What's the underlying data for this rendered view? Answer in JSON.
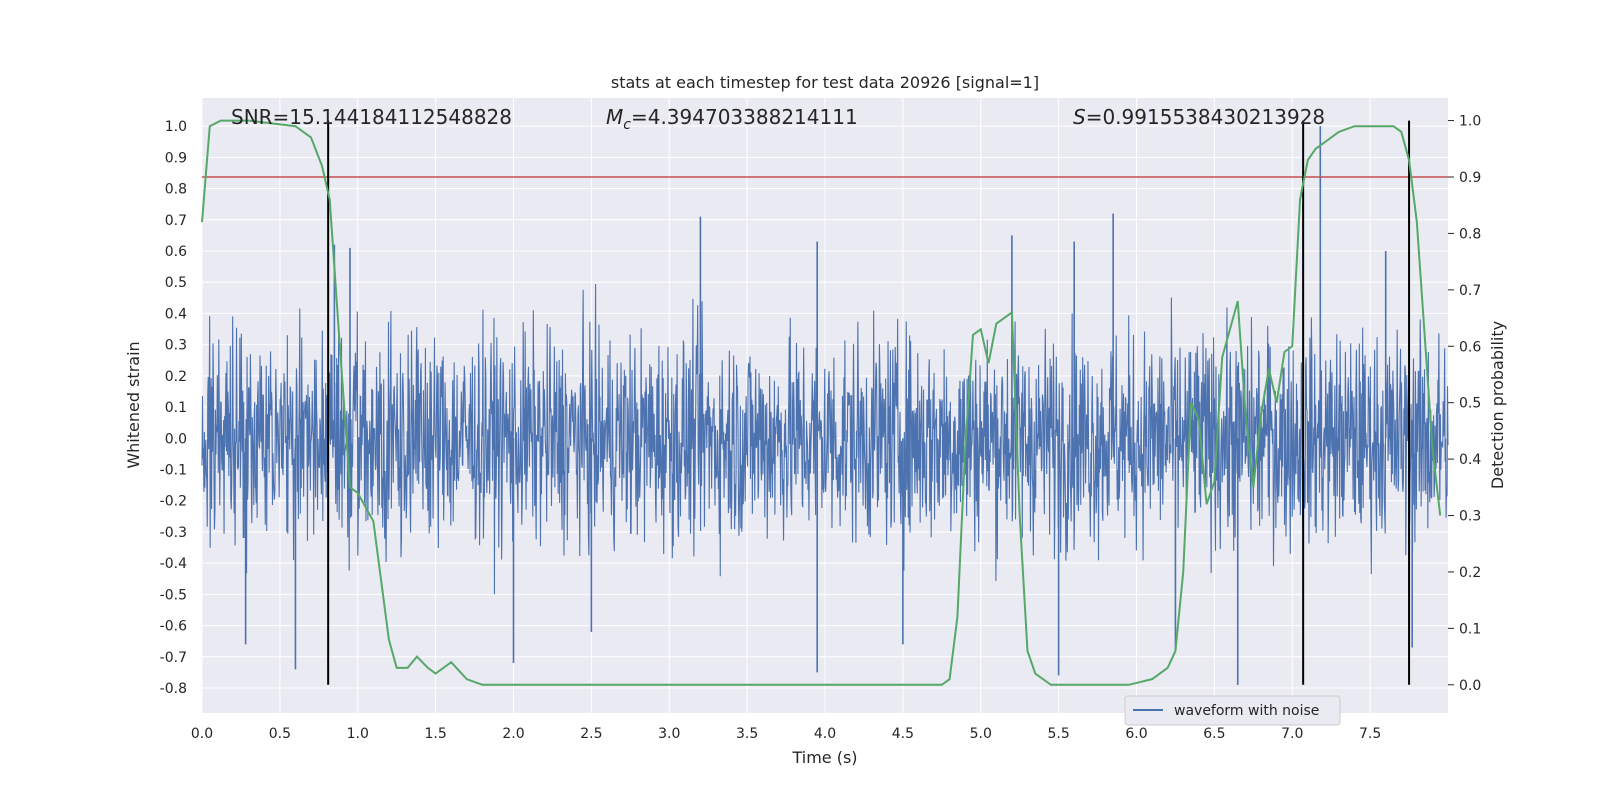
{
  "chart_data": {
    "type": "line",
    "title": "stats at each timestep for test data 20926 [signal=1]",
    "xlabel": "Time (s)",
    "ylabel": "Whitened strain",
    "ylabel_right": "Detection probability",
    "xlim": [
      0,
      8
    ],
    "ylim": [
      -0.88,
      1.09
    ],
    "ylim_right": [
      -0.05,
      1.04
    ],
    "x_ticks": [
      "0.0",
      "0.5",
      "1.0",
      "1.5",
      "2.0",
      "2.5",
      "3.0",
      "3.5",
      "4.0",
      "4.5",
      "5.0",
      "5.5",
      "6.0",
      "6.5",
      "7.0",
      "7.5"
    ],
    "y_ticks": [
      "1.0",
      "0.9",
      "0.8",
      "0.7",
      "0.6",
      "0.5",
      "0.4",
      "0.3",
      "0.2",
      "0.1",
      "0.0",
      "-0.1",
      "-0.2",
      "-0.3",
      "-0.4",
      "-0.5",
      "-0.6",
      "-0.7",
      "-0.8"
    ],
    "y_ticks_right": [
      "1.0",
      "0.9",
      "0.8",
      "0.7",
      "0.6",
      "0.5",
      "0.4",
      "0.3",
      "0.2",
      "0.1",
      "0.0"
    ],
    "annotations": {
      "snr": "SNR=15.144184112548828",
      "mc_symbol": "M",
      "mc_sub": "c",
      "mc_value": "=4.394703388214111",
      "s_symbol": "S",
      "s_value": "=0.9915538430213928"
    },
    "legend": {
      "label": "waveform with noise",
      "placement": "lower-right"
    },
    "grid": true,
    "threshold": {
      "axis": "right",
      "value": 0.9,
      "color": "#c44e52"
    },
    "vertical_lines": [
      0.81,
      7.07,
      7.75
    ],
    "series": [
      {
        "name": "waveform with noise",
        "axis": "left",
        "color": "#4c72b0",
        "kind": "noise",
        "envelope_core": 0.3,
        "peaks": [
          [
            0.85,
            0.62
          ],
          [
            0.6,
            -0.74
          ],
          [
            0.28,
            -0.66
          ],
          [
            0.95,
            0.61
          ],
          [
            2.0,
            -0.72
          ],
          [
            2.5,
            -0.62
          ],
          [
            3.2,
            0.71
          ],
          [
            3.95,
            0.63
          ],
          [
            3.95,
            -0.75
          ],
          [
            4.5,
            -0.66
          ],
          [
            5.2,
            0.65
          ],
          [
            5.5,
            -0.76
          ],
          [
            5.6,
            0.63
          ],
          [
            5.85,
            0.72
          ],
          [
            6.25,
            -0.68
          ],
          [
            6.65,
            -0.79
          ],
          [
            7.07,
            0.75
          ],
          [
            7.18,
            1.0
          ],
          [
            7.77,
            -0.67
          ],
          [
            7.6,
            0.6
          ]
        ]
      },
      {
        "name": "",
        "axis": "right",
        "color": "#55a868",
        "x": [
          0.0,
          0.05,
          0.12,
          0.3,
          0.6,
          0.7,
          0.77,
          0.82,
          0.88,
          0.95,
          1.0,
          1.1,
          1.2,
          1.25,
          1.32,
          1.38,
          1.45,
          1.5,
          1.6,
          1.7,
          1.8,
          2.0,
          2.3,
          2.6,
          3.0,
          3.2,
          3.5,
          3.7,
          3.8,
          3.9,
          4.0,
          4.2,
          4.5,
          4.75,
          4.8,
          4.85,
          4.9,
          4.95,
          5.0,
          5.05,
          5.1,
          5.15,
          5.2,
          5.25,
          5.3,
          5.35,
          5.45,
          5.6,
          5.8,
          5.95,
          6.1,
          6.2,
          6.25,
          6.3,
          6.35,
          6.4,
          6.45,
          6.5,
          6.55,
          6.6,
          6.65,
          6.7,
          6.75,
          6.8,
          6.85,
          6.9,
          6.95,
          7.0,
          7.05,
          7.1,
          7.15,
          7.2,
          7.3,
          7.4,
          7.45,
          7.5,
          7.55,
          7.6,
          7.65,
          7.7,
          7.75,
          7.8,
          7.85,
          7.9,
          7.95
        ],
        "y": [
          0.82,
          0.99,
          1.0,
          1.0,
          0.99,
          0.97,
          0.92,
          0.86,
          0.62,
          0.35,
          0.34,
          0.29,
          0.08,
          0.03,
          0.03,
          0.05,
          0.03,
          0.02,
          0.04,
          0.01,
          0.0,
          0.0,
          0.0,
          0.0,
          0.0,
          0.0,
          0.0,
          0.0,
          0.0,
          0.0,
          0.0,
          0.0,
          0.0,
          0.0,
          0.01,
          0.12,
          0.42,
          0.62,
          0.63,
          0.57,
          0.64,
          0.65,
          0.66,
          0.3,
          0.06,
          0.02,
          0.0,
          0.0,
          0.0,
          0.0,
          0.01,
          0.03,
          0.06,
          0.2,
          0.5,
          0.47,
          0.32,
          0.36,
          0.58,
          0.63,
          0.68,
          0.48,
          0.35,
          0.48,
          0.56,
          0.5,
          0.59,
          0.6,
          0.86,
          0.93,
          0.95,
          0.96,
          0.98,
          0.99,
          0.99,
          0.99,
          0.99,
          0.99,
          0.99,
          0.98,
          0.93,
          0.82,
          0.62,
          0.42,
          0.3
        ]
      }
    ]
  }
}
